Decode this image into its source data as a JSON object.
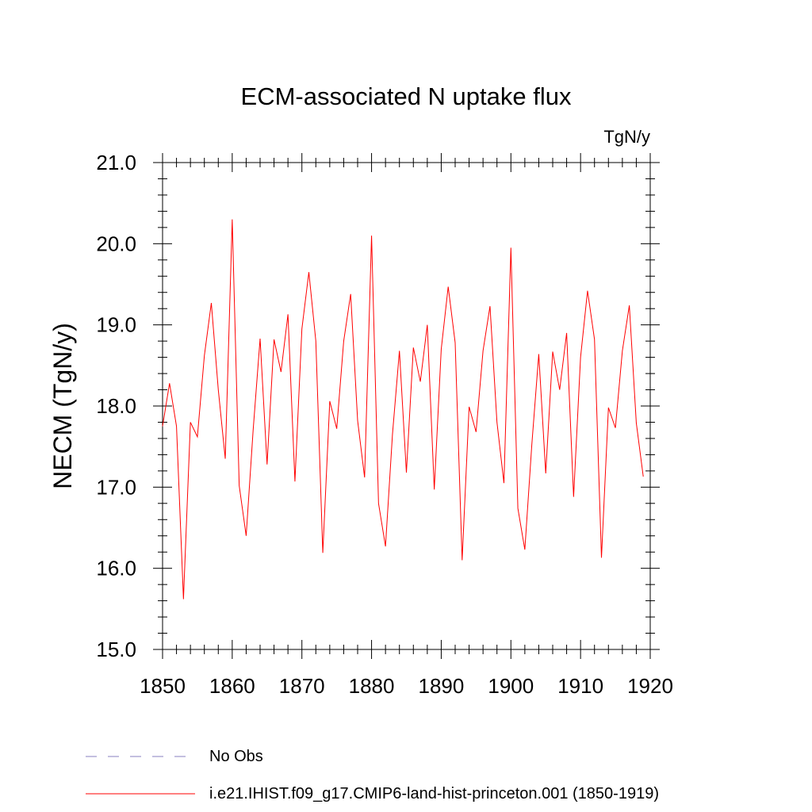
{
  "chart_data": {
    "type": "line",
    "title": "ECM-associated N uptake flux",
    "units_label": "TgN/y",
    "ylabel": "NECM  (TgN/y)",
    "xlabel": "",
    "xlim": [
      1850,
      1920
    ],
    "ylim": [
      15.0,
      21.0
    ],
    "x_ticks": [
      1850,
      1860,
      1870,
      1880,
      1890,
      1900,
      1910,
      1920
    ],
    "x_tick_labels": [
      "1850",
      "1860",
      "1870",
      "1880",
      "1890",
      "1900",
      "1910",
      "1920"
    ],
    "y_ticks": [
      15.0,
      16.0,
      17.0,
      18.0,
      19.0,
      20.0,
      21.0
    ],
    "y_tick_labels": [
      "15.0",
      "16.0",
      "17.0",
      "18.0",
      "19.0",
      "20.0",
      "21.0"
    ],
    "grid": false,
    "legend_position": "bottom-left",
    "legend": [
      {
        "label": "No Obs",
        "color": "#8a7fc0",
        "style": "dashed"
      },
      {
        "label": "i.e21.IHIST.f09_g17.CMIP6-land-hist-princeton.001 (1850-1919)",
        "color": "#ff0000",
        "style": "solid"
      }
    ],
    "series": [
      {
        "name": "i.e21.IHIST.f09_g17.CMIP6-land-hist-princeton.001 (1850-1919)",
        "color": "#ff0000",
        "x": [
          1850,
          1851,
          1852,
          1853,
          1854,
          1855,
          1856,
          1857,
          1858,
          1859,
          1860,
          1861,
          1862,
          1863,
          1864,
          1865,
          1866,
          1867,
          1868,
          1869,
          1870,
          1871,
          1872,
          1873,
          1874,
          1875,
          1876,
          1877,
          1878,
          1879,
          1880,
          1881,
          1882,
          1883,
          1884,
          1885,
          1886,
          1887,
          1888,
          1889,
          1890,
          1891,
          1892,
          1893,
          1894,
          1895,
          1896,
          1897,
          1898,
          1899,
          1900,
          1901,
          1902,
          1903,
          1904,
          1905,
          1906,
          1907,
          1908,
          1909,
          1910,
          1911,
          1912,
          1913,
          1914,
          1915,
          1916,
          1917,
          1918,
          1919
        ],
        "values": [
          17.75,
          18.28,
          17.75,
          15.62,
          17.8,
          17.62,
          18.62,
          19.27,
          18.2,
          17.35,
          20.3,
          17.02,
          16.4,
          17.7,
          18.83,
          17.28,
          18.82,
          18.42,
          19.13,
          17.07,
          18.95,
          19.65,
          18.8,
          16.19,
          18.06,
          17.72,
          18.8,
          19.38,
          17.82,
          17.12,
          20.1,
          16.8,
          16.27,
          17.65,
          18.68,
          17.18,
          18.72,
          18.3,
          19.0,
          16.97,
          18.7,
          19.47,
          18.78,
          16.1,
          17.99,
          17.68,
          18.68,
          19.23,
          17.8,
          17.05,
          19.95,
          16.74,
          16.23,
          17.52,
          18.64,
          17.17,
          18.67,
          18.2,
          18.9,
          16.88,
          18.6,
          19.42,
          18.82,
          16.13,
          17.98,
          17.73,
          18.68,
          19.24,
          17.79,
          17.13
        ]
      }
    ]
  }
}
